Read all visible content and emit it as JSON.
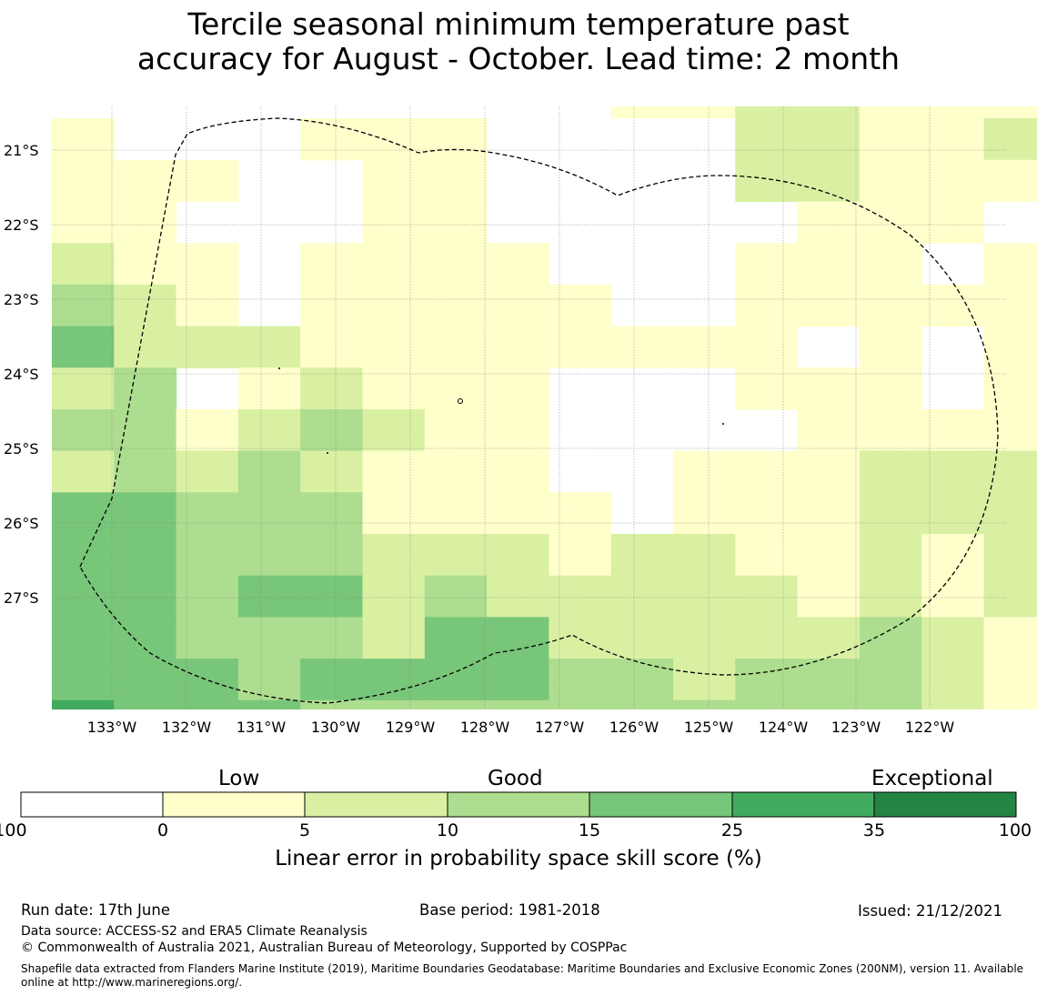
{
  "title_line1": "Tercile seasonal minimum temperature past",
  "title_line2": "accuracy for August - October. Lead time: 2 month",
  "map": {
    "lat_labels": [
      "21°S",
      "22°S",
      "23°S",
      "24°S",
      "25°S",
      "26°S",
      "27°S"
    ],
    "lon_labels": [
      "133°W",
      "132°W",
      "131°W",
      "130°W",
      "129°W",
      "128°W",
      "127°W",
      "126°W",
      "125°W",
      "124°W",
      "123°W",
      "122°W"
    ],
    "palette": [
      "#ffffff",
      "#ffffcc",
      "#d9f0a3",
      "#addd8e",
      "#78c679",
      "#41ab5d",
      "#238443"
    ],
    "grid_top_row": [
      0,
      0,
      0,
      0,
      0,
      0,
      0,
      0,
      0,
      1,
      1,
      2,
      2,
      1,
      1,
      1
    ],
    "grid": [
      [
        1,
        0,
        0,
        0,
        1,
        1,
        1,
        0,
        0,
        0,
        0,
        2,
        2,
        1,
        1,
        2
      ],
      [
        1,
        1,
        1,
        0,
        0,
        1,
        1,
        0,
        0,
        0,
        0,
        2,
        2,
        1,
        1,
        1
      ],
      [
        1,
        1,
        0,
        0,
        0,
        1,
        1,
        0,
        0,
        0,
        0,
        0,
        1,
        1,
        1,
        0
      ],
      [
        2,
        1,
        1,
        0,
        1,
        1,
        1,
        1,
        0,
        0,
        0,
        1,
        1,
        1,
        0,
        1
      ],
      [
        3,
        2,
        1,
        0,
        1,
        1,
        1,
        1,
        1,
        0,
        0,
        1,
        1,
        1,
        1,
        1
      ],
      [
        4,
        2,
        2,
        2,
        1,
        1,
        1,
        1,
        1,
        1,
        1,
        1,
        0,
        1,
        0,
        1
      ],
      [
        2,
        3,
        0,
        1,
        2,
        1,
        1,
        1,
        0,
        0,
        0,
        1,
        1,
        1,
        0,
        1
      ],
      [
        3,
        3,
        1,
        2,
        3,
        2,
        1,
        1,
        0,
        0,
        0,
        0,
        1,
        1,
        1,
        1
      ],
      [
        2,
        3,
        2,
        3,
        2,
        1,
        1,
        1,
        0,
        0,
        1,
        1,
        1,
        2,
        2,
        2
      ],
      [
        4,
        4,
        3,
        3,
        3,
        1,
        1,
        1,
        1,
        0,
        1,
        1,
        1,
        2,
        2,
        2
      ],
      [
        4,
        4,
        3,
        3,
        3,
        2,
        2,
        2,
        1,
        2,
        2,
        1,
        1,
        2,
        1,
        2
      ],
      [
        4,
        4,
        3,
        4,
        4,
        2,
        3,
        2,
        2,
        2,
        2,
        2,
        1,
        2,
        1,
        2
      ],
      [
        4,
        4,
        3,
        3,
        3,
        2,
        4,
        4,
        2,
        2,
        2,
        2,
        2,
        3,
        2,
        1
      ],
      [
        4,
        4,
        4,
        3,
        4,
        4,
        4,
        4,
        3,
        3,
        2,
        3,
        3,
        3,
        2,
        1
      ],
      [
        5,
        4,
        4,
        4,
        3,
        3,
        3,
        3,
        3,
        3,
        3,
        3,
        3,
        3,
        2,
        1
      ]
    ]
  },
  "colorbar": {
    "words": [
      "Low",
      "Good",
      "Exceptional"
    ],
    "ticks": [
      "-100",
      "0",
      "5",
      "10",
      "15",
      "25",
      "35",
      "100"
    ],
    "colors": [
      "#ffffff",
      "#ffffcc",
      "#d9f0a3",
      "#addd8e",
      "#78c679",
      "#41ab5d",
      "#238443"
    ],
    "label": "Linear error in probability space skill score (%)"
  },
  "footer": {
    "run_date": "Run date: 17th June",
    "base_period": "Base period: 1981-2018",
    "issued": "Issued: 21/12/2021",
    "data_source": "Data source: ACCESS-S2 and ERA5 Climate Reanalysis",
    "copyright": "© Commonwealth of Australia 2021, Australian Bureau of Meteorology, Supported by COSPPac",
    "shapefile": "Shapefile data extracted from Flanders Marine Institute (2019), Maritime Boundaries Geodatabase: Maritime Boundaries and Exclusive Economic Zones (200NM), version 11. Available online at http://www.marineregions.org/."
  }
}
